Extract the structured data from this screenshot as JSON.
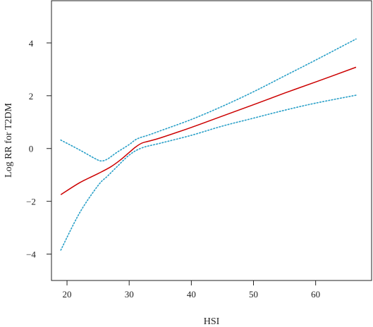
{
  "chart_data": {
    "type": "line",
    "xlabel": "HSI",
    "ylabel": "Log RR for T2DM",
    "xlim": [
      17.5,
      69
    ],
    "ylim": [
      -5,
      5.6
    ],
    "xticks": [
      20,
      30,
      40,
      50,
      60
    ],
    "yticks": [
      -4,
      -2,
      0,
      2,
      4
    ],
    "ytick_labels": [
      "−4",
      "−2",
      "0",
      "2",
      "4"
    ],
    "grid": false,
    "legend": "none",
    "series": [
      {
        "role": "estimate",
        "color": "#cc0000",
        "style": "solid",
        "x": [
          19,
          22,
          25,
          27,
          28.5,
          30,
          31,
          32,
          33,
          35,
          40,
          45,
          50,
          55,
          60,
          66.5
        ],
        "y": [
          -1.75,
          -1.3,
          -0.95,
          -0.7,
          -0.45,
          -0.15,
          0.05,
          0.2,
          0.27,
          0.4,
          0.8,
          1.23,
          1.66,
          2.1,
          2.52,
          3.08
        ]
      },
      {
        "role": "upper-ci",
        "color": "#2aa0c8",
        "style": "dotted",
        "x": [
          19,
          22,
          24.5,
          25.5,
          26.5,
          28,
          30,
          31,
          32,
          33,
          35,
          40,
          45,
          50,
          55,
          60,
          66.5
        ],
        "y": [
          0.32,
          -0.05,
          -0.38,
          -0.47,
          -0.4,
          -0.15,
          0.15,
          0.33,
          0.43,
          0.5,
          0.67,
          1.1,
          1.6,
          2.15,
          2.75,
          3.35,
          4.15
        ]
      },
      {
        "role": "lower-ci",
        "color": "#2aa0c8",
        "style": "dotted",
        "x": [
          19,
          22,
          25,
          26.5,
          28,
          30,
          32,
          35,
          40,
          45,
          50,
          55,
          60,
          66.5
        ],
        "y": [
          -3.85,
          -2.45,
          -1.4,
          -1.05,
          -0.7,
          -0.25,
          0.02,
          0.2,
          0.5,
          0.85,
          1.15,
          1.45,
          1.72,
          2.02
        ]
      }
    ]
  }
}
